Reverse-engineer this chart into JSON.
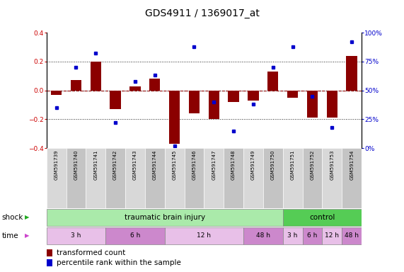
{
  "title": "GDS4911 / 1369017_at",
  "samples": [
    "GSM591739",
    "GSM591740",
    "GSM591741",
    "GSM591742",
    "GSM591743",
    "GSM591744",
    "GSM591745",
    "GSM591746",
    "GSM591747",
    "GSM591748",
    "GSM591749",
    "GSM591750",
    "GSM591751",
    "GSM591752",
    "GSM591753",
    "GSM591754"
  ],
  "red_bars": [
    -0.03,
    0.07,
    0.2,
    -0.13,
    0.03,
    0.08,
    -0.37,
    -0.16,
    -0.2,
    -0.08,
    -0.07,
    0.13,
    -0.05,
    -0.19,
    -0.19,
    0.24
  ],
  "blue_dots": [
    35,
    70,
    82,
    22,
    58,
    63,
    2,
    88,
    40,
    15,
    38,
    70,
    88,
    45,
    18,
    92
  ],
  "ylim": [
    -0.4,
    0.4
  ],
  "y2lim": [
    0,
    100
  ],
  "yticks": [
    -0.4,
    -0.2,
    0.0,
    0.2,
    0.4
  ],
  "y2ticks": [
    0,
    25,
    50,
    75,
    100
  ],
  "bar_color": "#8b0000",
  "dot_color": "#0000cc",
  "zero_line_color": "#cc0000",
  "dotted_line_color": "#222222",
  "bg_color": "#ffffff",
  "title_fontsize": 10,
  "tick_fontsize": 6.5,
  "label_fontsize": 7.5,
  "legend_fontsize": 7.5,
  "bar_width": 0.55,
  "tbi_color": "#aaeaaa",
  "ctrl_color": "#55cc55",
  "time_color_light": "#e8c0e8",
  "time_color_dark": "#cc88cc",
  "sample_cell_color_even": "#d8d8d8",
  "sample_cell_color_odd": "#c4c4c4"
}
